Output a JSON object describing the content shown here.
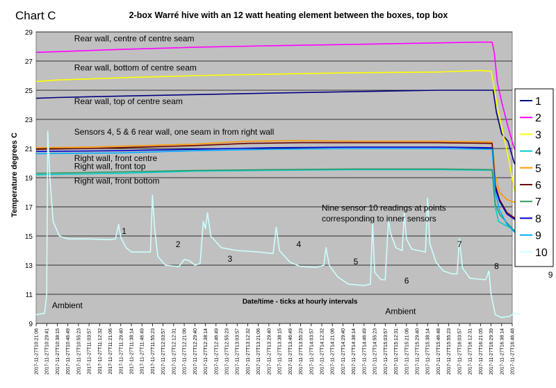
{
  "chart_data": {
    "type": "line",
    "chart_label": "Chart C",
    "title": "2-box Warré hive with an 12 watt heating element between the boxes, top box",
    "ylabel": "Temperature degrees C",
    "xlabel": "Date/time - ticks at hourly intervals",
    "ylim": [
      9,
      29
    ],
    "yticks": [
      9,
      11,
      13,
      15,
      17,
      19,
      21,
      23,
      25,
      27,
      29
    ],
    "grid": true,
    "legend_position": "right",
    "x_ticks": [
      "2017-11-27T10:21:06",
      "2017-11-27T10:29:41",
      "2017-11-27T10:38:15",
      "2017-11-27T10:46:49",
      "2017-11-27T10:55:23",
      "2017-11-27T11:03:57",
      "2017-11-27T11:12:32",
      "2017-11-27T11:21:06",
      "2017-11-27T11:29:40",
      "2017-11-27T11:38:14",
      "2017-11-27T11:46:49",
      "2017-11-27T11:55:23",
      "2017-11-27T12:03:57",
      "2017-11-27T12:12:31",
      "2017-11-27T12:21:06",
      "2017-11-27T12:29:40",
      "2017-11-27T12:38:14",
      "2017-11-27T12:46:49",
      "2017-11-27T12:55:23",
      "2017-11-27T13:03:57",
      "2017-11-27T13:12:32",
      "2017-11-27T13:21:06",
      "2017-11-27T13:29:40",
      "2017-11-27T13:38:15",
      "2017-11-27T13:46:49",
      "2017-11-27T13:55:23",
      "2017-11-27T14:03:57",
      "2017-11-27T14:12:32",
      "2017-11-27T14:21:06",
      "2017-11-27T14:29:40",
      "2017-11-27T14:38:14",
      "2017-11-27T14:46:49",
      "2017-11-27T14:55:23",
      "2017-11-27T15:03:57",
      "2017-11-27T15:12:31",
      "2017-11-27T15:21:06",
      "2017-11-27T15:29:40",
      "2017-11-27T15:38:14",
      "2017-11-27T15:46:48",
      "2017-11-27T15:55:23",
      "2017-11-27T16:03:57",
      "2017-11-27T16:12:31",
      "2017-11-27T16:21:05",
      "2017-11-27T16:29:39",
      "2017-11-27T16:38:14",
      "2017-11-27T16:46:48"
    ],
    "series": [
      {
        "name": "1",
        "color": "#000080",
        "points": [
          [
            0,
            24.45
          ],
          [
            2,
            24.5
          ],
          [
            8,
            24.6
          ],
          [
            15,
            24.7
          ],
          [
            22,
            24.8
          ],
          [
            30,
            24.9
          ],
          [
            38,
            25.0
          ],
          [
            43.2,
            25.0
          ],
          [
            43.5,
            23.5
          ],
          [
            44,
            22.0
          ],
          [
            44.6,
            21.5
          ],
          [
            45.2,
            20.0
          ],
          [
            45.8,
            19.4
          ]
        ]
      },
      {
        "name": "2",
        "color": "#ff00ff",
        "points": [
          [
            0,
            27.6
          ],
          [
            2,
            27.65
          ],
          [
            8,
            27.8
          ],
          [
            15,
            27.95
          ],
          [
            22,
            28.05
          ],
          [
            30,
            28.15
          ],
          [
            38,
            28.25
          ],
          [
            42,
            28.3
          ],
          [
            43.1,
            28.3
          ],
          [
            43.3,
            27.6
          ],
          [
            43.6,
            25.5
          ],
          [
            44,
            24.2
          ],
          [
            44.6,
            22.5
          ],
          [
            45.2,
            21.0
          ],
          [
            45.8,
            20.5
          ]
        ]
      },
      {
        "name": "3",
        "color": "#ffff00",
        "points": [
          [
            0,
            25.6
          ],
          [
            2,
            25.7
          ],
          [
            8,
            25.85
          ],
          [
            15,
            26.0
          ],
          [
            22,
            26.1
          ],
          [
            30,
            26.2
          ],
          [
            38,
            26.25
          ],
          [
            42,
            26.35
          ],
          [
            43.0,
            26.3
          ],
          [
            43.3,
            25.2
          ],
          [
            43.6,
            23.8
          ],
          [
            44,
            22.5
          ],
          [
            44.6,
            20.5
          ],
          [
            45.2,
            18.2
          ],
          [
            45.8,
            17.0
          ]
        ]
      },
      {
        "name": "4",
        "color": "#00cccc",
        "points": [
          [
            0,
            19.2
          ],
          [
            8,
            19.3
          ],
          [
            15,
            19.45
          ],
          [
            22,
            19.5
          ],
          [
            30,
            19.55
          ],
          [
            38,
            19.55
          ],
          [
            43.1,
            19.5
          ],
          [
            43.4,
            17.0
          ],
          [
            43.7,
            16.0
          ],
          [
            44.2,
            15.8
          ],
          [
            45,
            15.5
          ],
          [
            45.8,
            15.0
          ]
        ]
      },
      {
        "name": "5",
        "color": "#ff9900",
        "points": [
          [
            0,
            21.05
          ],
          [
            5,
            21.1
          ],
          [
            10,
            21.2
          ],
          [
            15,
            21.3
          ],
          [
            20,
            21.5
          ],
          [
            25,
            21.55
          ],
          [
            30,
            21.5
          ],
          [
            38,
            21.5
          ],
          [
            43.1,
            21.45
          ],
          [
            43.4,
            19.2
          ],
          [
            43.8,
            18.0
          ],
          [
            44.5,
            17.5
          ],
          [
            45.3,
            17.3
          ],
          [
            45.8,
            17.2
          ]
        ]
      },
      {
        "name": "6",
        "color": "#660000",
        "points": [
          [
            0,
            20.95
          ],
          [
            5,
            21.0
          ],
          [
            10,
            21.1
          ],
          [
            15,
            21.2
          ],
          [
            20,
            21.35
          ],
          [
            25,
            21.4
          ],
          [
            30,
            21.4
          ],
          [
            38,
            21.4
          ],
          [
            43.1,
            21.35
          ],
          [
            43.4,
            18.5
          ],
          [
            43.8,
            17.5
          ],
          [
            44.5,
            16.6
          ],
          [
            45.3,
            16.2
          ],
          [
            45.8,
            16.0
          ]
        ]
      },
      {
        "name": "7",
        "color": "#339966",
        "points": [
          [
            0,
            19.3
          ],
          [
            8,
            19.4
          ],
          [
            15,
            19.5
          ],
          [
            22,
            19.55
          ],
          [
            30,
            19.6
          ],
          [
            38,
            19.6
          ],
          [
            43.1,
            19.55
          ],
          [
            43.4,
            17.2
          ],
          [
            43.8,
            16.5
          ],
          [
            44.5,
            15.9
          ],
          [
            45.3,
            15.3
          ],
          [
            45.8,
            15.0
          ]
        ]
      },
      {
        "name": "8",
        "color": "#0000cc",
        "points": [
          [
            0,
            20.8
          ],
          [
            8,
            20.85
          ],
          [
            15,
            20.95
          ],
          [
            22,
            21.05
          ],
          [
            30,
            21.1
          ],
          [
            38,
            21.1
          ],
          [
            43.1,
            21.05
          ],
          [
            43.4,
            18.3
          ],
          [
            43.8,
            17.4
          ],
          [
            44.5,
            16.5
          ],
          [
            45.3,
            16.1
          ],
          [
            45.8,
            15.9
          ]
        ]
      },
      {
        "name": "9",
        "color": "#00aaff",
        "points": [
          [
            0,
            20.65
          ],
          [
            8,
            20.7
          ],
          [
            15,
            20.85
          ],
          [
            22,
            20.95
          ],
          [
            30,
            21.0
          ],
          [
            38,
            21.0
          ],
          [
            43.1,
            20.95
          ],
          [
            43.4,
            18.0
          ],
          [
            43.8,
            16.8
          ],
          [
            44.5,
            15.8
          ],
          [
            45.3,
            15.2
          ],
          [
            45.8,
            14.9
          ]
        ]
      },
      {
        "name": "10",
        "color": "#ccffff",
        "points": [
          [
            0,
            9.6
          ],
          [
            0.8,
            9.7
          ],
          [
            1.0,
            11.0
          ],
          [
            1.1,
            22.2
          ],
          [
            1.3,
            19.0
          ],
          [
            1.6,
            16.0
          ],
          [
            2.2,
            15.0
          ],
          [
            3,
            14.8
          ],
          [
            5,
            14.8
          ],
          [
            7,
            14.75
          ],
          [
            7.5,
            14.8
          ],
          [
            7.8,
            15.8
          ],
          [
            8.0,
            14.9
          ],
          [
            8.5,
            14.2
          ],
          [
            9,
            13.9
          ],
          [
            10,
            13.9
          ],
          [
            10.8,
            13.9
          ],
          [
            11.0,
            17.8
          ],
          [
            11.2,
            15.5
          ],
          [
            11.5,
            13.6
          ],
          [
            12.2,
            13.0
          ],
          [
            13.5,
            12.9
          ],
          [
            14,
            13.4
          ],
          [
            14.5,
            13.3
          ],
          [
            15,
            13.0
          ],
          [
            15.5,
            13.1
          ],
          [
            15.8,
            16.0
          ],
          [
            16.0,
            15.5
          ],
          [
            16.2,
            16.6
          ],
          [
            16.5,
            15.0
          ],
          [
            17.5,
            14.2
          ],
          [
            19,
            14.0
          ],
          [
            21,
            13.9
          ],
          [
            22.4,
            13.8
          ],
          [
            22.7,
            15.6
          ],
          [
            23,
            14.0
          ],
          [
            24,
            13.2
          ],
          [
            25,
            12.9
          ],
          [
            26.5,
            12.85
          ],
          [
            27.2,
            13.0
          ],
          [
            27.4,
            14.2
          ],
          [
            27.7,
            13.0
          ],
          [
            28.5,
            12.2
          ],
          [
            29.5,
            11.7
          ],
          [
            31,
            11.6
          ],
          [
            31.6,
            11.7
          ],
          [
            31.8,
            16.0
          ],
          [
            32.0,
            12.5
          ],
          [
            32.6,
            12.0
          ],
          [
            33.0,
            12.0
          ],
          [
            33.3,
            16.1
          ],
          [
            33.5,
            15.2
          ],
          [
            34,
            14.2
          ],
          [
            34.6,
            14.0
          ],
          [
            34.8,
            16.6
          ],
          [
            35.0,
            14.8
          ],
          [
            35.5,
            14.1
          ],
          [
            36.8,
            13.9
          ],
          [
            37.0,
            17.6
          ],
          [
            37.2,
            14.5
          ],
          [
            37.8,
            13.2
          ],
          [
            38.5,
            12.6
          ],
          [
            39.3,
            12.4
          ],
          [
            39.8,
            12.4
          ],
          [
            40.0,
            14.8
          ],
          [
            40.3,
            12.8
          ],
          [
            41,
            12.1
          ],
          [
            42.5,
            12.0
          ],
          [
            42.8,
            12.6
          ],
          [
            43.0,
            11.0
          ],
          [
            43.4,
            9.6
          ],
          [
            44,
            9.4
          ],
          [
            44.8,
            9.5
          ],
          [
            45.2,
            9.7
          ],
          [
            45.8,
            9.6
          ]
        ]
      }
    ],
    "annotations": [
      {
        "text": "Rear wall, centre of centre seam",
        "x": 3.6,
        "y": 28.35
      },
      {
        "text": "Rear wall, bottom of centre seam",
        "x": 3.6,
        "y": 26.35
      },
      {
        "text": "Rear wall, top of centre seam",
        "x": 3.6,
        "y": 24.05
      },
      {
        "text": "Sensors 4, 5 & 6 rear wall, one seam in from right wall",
        "x": 3.6,
        "y": 21.95
      },
      {
        "text": "Right wall, front centre",
        "x": 3.6,
        "y": 20.15
      },
      {
        "text": "Right wall, front top",
        "x": 3.6,
        "y": 19.6
      },
      {
        "text": "Right wall, front bottom",
        "x": 3.6,
        "y": 18.6
      },
      {
        "text": "Nine sensor 10 readings at points",
        "x": 27.0,
        "y": 16.75
      },
      {
        "text": "corresponding to inner sensors",
        "x": 27.0,
        "y": 16.0
      },
      {
        "text": "1",
        "x": 8.1,
        "y": 15.15
      },
      {
        "text": "2",
        "x": 13.2,
        "y": 14.25
      },
      {
        "text": "3",
        "x": 18.1,
        "y": 13.25
      },
      {
        "text": "4",
        "x": 24.6,
        "y": 14.25
      },
      {
        "text": "5",
        "x": 30.0,
        "y": 13.05
      },
      {
        "text": "6",
        "x": 34.8,
        "y": 11.75
      },
      {
        "text": "7",
        "x": 39.8,
        "y": 14.25
      },
      {
        "text": "8",
        "x": 43.3,
        "y": 12.75
      },
      {
        "text": "9",
        "x": 48.4,
        "y": 12.15
      },
      {
        "text": "Ambient",
        "x": 1.5,
        "y": 10.05
      },
      {
        "text": "Ambient",
        "x": 33.0,
        "y": 9.65
      },
      {
        "text": "Date/time - ticks at hourly intervals",
        "x": 19.5,
        "y": 10.35
      }
    ]
  }
}
